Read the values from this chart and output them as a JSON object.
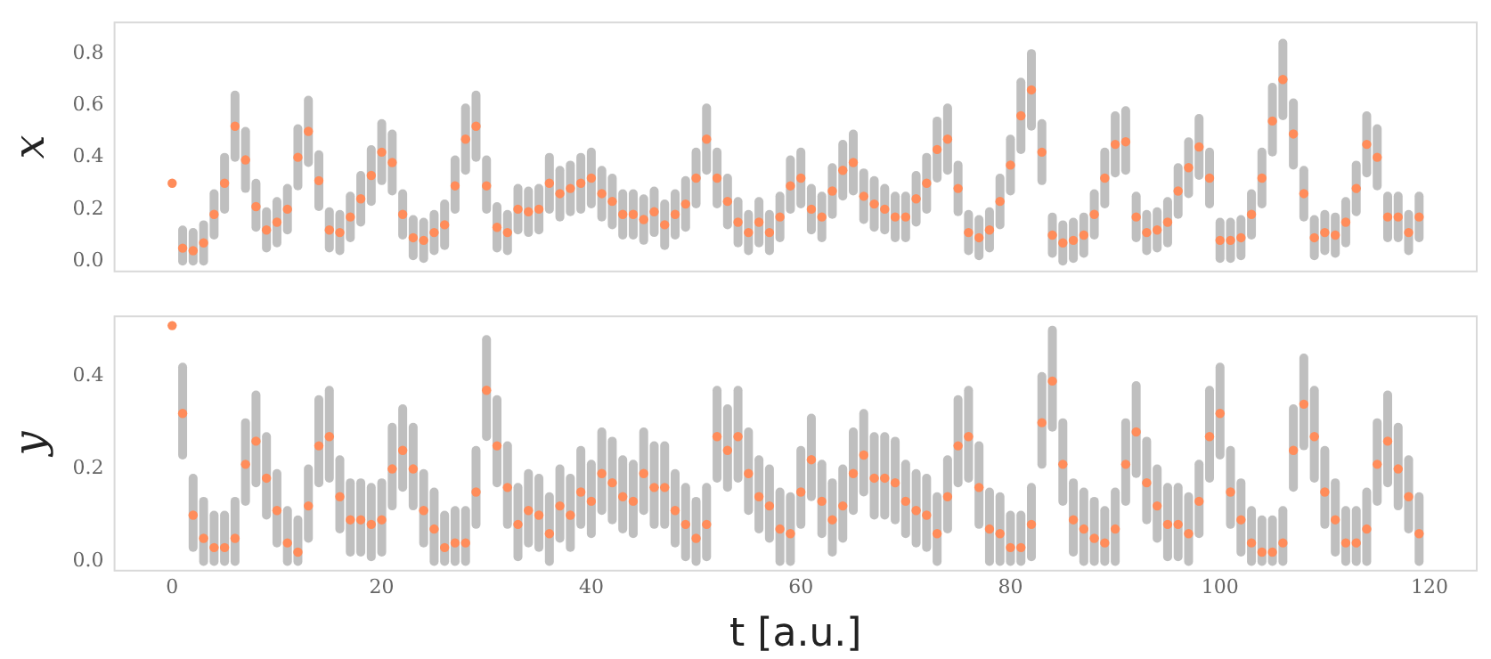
{
  "chart_data": [
    {
      "type": "scatter",
      "ylabel": "x",
      "marker": "circle",
      "grid": false,
      "legend": false,
      "tick_labels": "y",
      "color": "#ff8c5a",
      "x": [
        0,
        1,
        2,
        3,
        4,
        5,
        6,
        7,
        8,
        9,
        10,
        11,
        12,
        13,
        14,
        15,
        16,
        17,
        18,
        19,
        20,
        21,
        22,
        23,
        24,
        25,
        26,
        27,
        28,
        29,
        30,
        31,
        32,
        33,
        34,
        35,
        36,
        37,
        38,
        39,
        40,
        41,
        42,
        43,
        44,
        45,
        46,
        47,
        48,
        49,
        50,
        51,
        52,
        53,
        54,
        55,
        56,
        57,
        58,
        59,
        60,
        61,
        62,
        63,
        64,
        65,
        66,
        67,
        68,
        69,
        70,
        71,
        72,
        73,
        74,
        75,
        76,
        77,
        78,
        79,
        80,
        81,
        82,
        83,
        84,
        85,
        86,
        87,
        88,
        89,
        90,
        91,
        92,
        93,
        94,
        95,
        96,
        97,
        98,
        99,
        100,
        101,
        102,
        103,
        104,
        105,
        106,
        107,
        108,
        109,
        110,
        111,
        112,
        113,
        114,
        115,
        116,
        117,
        118,
        119
      ],
      "values": [
        0.3,
        0.05,
        0.04,
        0.07,
        0.18,
        0.3,
        0.52,
        0.39,
        0.21,
        0.12,
        0.15,
        0.2,
        0.4,
        0.5,
        0.31,
        0.12,
        0.11,
        0.17,
        0.24,
        0.33,
        0.42,
        0.38,
        0.18,
        0.09,
        0.08,
        0.11,
        0.14,
        0.29,
        0.47,
        0.52,
        0.29,
        0.13,
        0.11,
        0.2,
        0.19,
        0.2,
        0.3,
        0.26,
        0.28,
        0.3,
        0.32,
        0.26,
        0.23,
        0.18,
        0.18,
        0.16,
        0.19,
        0.14,
        0.18,
        0.22,
        0.32,
        0.47,
        0.32,
        0.23,
        0.15,
        0.11,
        0.15,
        0.11,
        0.17,
        0.29,
        0.32,
        0.2,
        0.17,
        0.27,
        0.35,
        0.38,
        0.25,
        0.22,
        0.2,
        0.17,
        0.17,
        0.24,
        0.3,
        0.43,
        0.47,
        0.28,
        0.11,
        0.09,
        0.12,
        0.23,
        0.37,
        0.56,
        0.66,
        0.42,
        0.1,
        0.07,
        0.08,
        0.1,
        0.18,
        0.32,
        0.45,
        0.46,
        0.17,
        0.11,
        0.12,
        0.15,
        0.27,
        0.36,
        0.44,
        0.32,
        0.08,
        0.08,
        0.09,
        0.18,
        0.32,
        0.54,
        0.7,
        0.49,
        0.26,
        0.09,
        0.11,
        0.1,
        0.15,
        0.28,
        0.45,
        0.4,
        0.17,
        0.17,
        0.11,
        0.17
      ],
      "errors": [
        null,
        [
          0.0,
          0.12
        ],
        [
          0.0,
          0.11
        ],
        [
          0.0,
          0.14
        ],
        [
          0.1,
          0.26
        ],
        [
          0.2,
          0.4
        ],
        [
          0.4,
          0.64
        ],
        [
          0.28,
          0.5
        ],
        [
          0.13,
          0.3
        ],
        [
          0.05,
          0.19
        ],
        [
          0.07,
          0.23
        ],
        [
          0.12,
          0.28
        ],
        [
          0.29,
          0.51
        ],
        [
          0.38,
          0.62
        ],
        [
          0.21,
          0.41
        ],
        [
          0.05,
          0.19
        ],
        [
          0.04,
          0.18
        ],
        [
          0.09,
          0.25
        ],
        [
          0.15,
          0.33
        ],
        [
          0.23,
          0.43
        ],
        [
          0.31,
          0.53
        ],
        [
          0.27,
          0.49
        ],
        [
          0.1,
          0.26
        ],
        [
          0.02,
          0.16
        ],
        [
          0.01,
          0.15
        ],
        [
          0.04,
          0.18
        ],
        [
          0.06,
          0.22
        ],
        [
          0.2,
          0.39
        ],
        [
          0.35,
          0.59
        ],
        [
          0.4,
          0.64
        ],
        [
          0.2,
          0.39
        ],
        [
          0.05,
          0.21
        ],
        [
          0.04,
          0.18
        ],
        [
          0.12,
          0.28
        ],
        [
          0.11,
          0.27
        ],
        [
          0.12,
          0.28
        ],
        [
          0.2,
          0.4
        ],
        [
          0.17,
          0.35
        ],
        [
          0.19,
          0.37
        ],
        [
          0.2,
          0.4
        ],
        [
          0.22,
          0.42
        ],
        [
          0.17,
          0.35
        ],
        [
          0.14,
          0.32
        ],
        [
          0.1,
          0.26
        ],
        [
          0.1,
          0.26
        ],
        [
          0.08,
          0.24
        ],
        [
          0.11,
          0.27
        ],
        [
          0.06,
          0.22
        ],
        [
          0.1,
          0.26
        ],
        [
          0.13,
          0.31
        ],
        [
          0.22,
          0.42
        ],
        [
          0.35,
          0.59
        ],
        [
          0.22,
          0.42
        ],
        [
          0.14,
          0.32
        ],
        [
          0.07,
          0.23
        ],
        [
          0.04,
          0.18
        ],
        [
          0.07,
          0.23
        ],
        [
          0.04,
          0.18
        ],
        [
          0.09,
          0.25
        ],
        [
          0.2,
          0.39
        ],
        [
          0.22,
          0.42
        ],
        [
          0.12,
          0.28
        ],
        [
          0.09,
          0.25
        ],
        [
          0.18,
          0.36
        ],
        [
          0.25,
          0.45
        ],
        [
          0.27,
          0.49
        ],
        [
          0.16,
          0.34
        ],
        [
          0.13,
          0.31
        ],
        [
          0.12,
          0.28
        ],
        [
          0.09,
          0.25
        ],
        [
          0.09,
          0.25
        ],
        [
          0.15,
          0.33
        ],
        [
          0.2,
          0.4
        ],
        [
          0.32,
          0.54
        ],
        [
          0.35,
          0.59
        ],
        [
          0.19,
          0.37
        ],
        [
          0.04,
          0.18
        ],
        [
          0.02,
          0.16
        ],
        [
          0.05,
          0.19
        ],
        [
          0.14,
          0.32
        ],
        [
          0.27,
          0.47
        ],
        [
          0.43,
          0.69
        ],
        [
          0.52,
          0.8
        ],
        [
          0.31,
          0.53
        ],
        [
          0.03,
          0.17
        ],
        [
          0.0,
          0.14
        ],
        [
          0.01,
          0.15
        ],
        [
          0.03,
          0.17
        ],
        [
          0.1,
          0.26
        ],
        [
          0.22,
          0.42
        ],
        [
          0.34,
          0.56
        ],
        [
          0.35,
          0.58
        ],
        [
          0.09,
          0.25
        ],
        [
          0.04,
          0.18
        ],
        [
          0.05,
          0.19
        ],
        [
          0.07,
          0.23
        ],
        [
          0.18,
          0.36
        ],
        [
          0.26,
          0.46
        ],
        [
          0.33,
          0.55
        ],
        [
          0.22,
          0.42
        ],
        [
          0.01,
          0.15
        ],
        [
          0.01,
          0.15
        ],
        [
          0.02,
          0.16
        ],
        [
          0.1,
          0.26
        ],
        [
          0.22,
          0.42
        ],
        [
          0.42,
          0.67
        ],
        [
          0.56,
          0.84
        ],
        [
          0.37,
          0.61
        ],
        [
          0.17,
          0.35
        ],
        [
          0.02,
          0.16
        ],
        [
          0.04,
          0.18
        ],
        [
          0.03,
          0.17
        ],
        [
          0.07,
          0.23
        ],
        [
          0.19,
          0.37
        ],
        [
          0.34,
          0.56
        ],
        [
          0.29,
          0.51
        ],
        [
          0.09,
          0.25
        ],
        [
          0.09,
          0.25
        ],
        [
          0.04,
          0.18
        ],
        [
          0.09,
          0.25
        ]
      ],
      "xlim": [
        -5.5,
        124.5
      ],
      "xticks": [
        0,
        20,
        40,
        60,
        80,
        100,
        120
      ],
      "ylim": [
        -0.04,
        0.92
      ],
      "yticks": [
        {
          "value": 0,
          "label": "0.0"
        },
        {
          "value": 0.2,
          "label": "0.2"
        },
        {
          "value": 0.4,
          "label": "0.4"
        },
        {
          "value": 0.6,
          "label": "0.6"
        },
        {
          "value": 0.8,
          "label": "0.8"
        }
      ]
    },
    {
      "type": "scatter",
      "ylabel": "y",
      "xlabel": "t [a.u.]",
      "marker": "circle",
      "grid": false,
      "legend": false,
      "color": "#ff8c5a",
      "x": [
        0,
        1,
        2,
        3,
        4,
        5,
        6,
        7,
        8,
        9,
        10,
        11,
        12,
        13,
        14,
        15,
        16,
        17,
        18,
        19,
        20,
        21,
        22,
        23,
        24,
        25,
        26,
        27,
        28,
        29,
        30,
        31,
        32,
        33,
        34,
        35,
        36,
        37,
        38,
        39,
        40,
        41,
        42,
        43,
        44,
        45,
        46,
        47,
        48,
        49,
        50,
        51,
        52,
        53,
        54,
        55,
        56,
        57,
        58,
        59,
        60,
        61,
        62,
        63,
        64,
        65,
        66,
        67,
        68,
        69,
        70,
        71,
        72,
        73,
        74,
        75,
        76,
        77,
        78,
        79,
        80,
        81,
        82,
        83,
        84,
        85,
        86,
        87,
        88,
        89,
        90,
        91,
        92,
        93,
        94,
        95,
        96,
        97,
        98,
        99,
        100,
        101,
        102,
        103,
        104,
        105,
        106,
        107,
        108,
        109,
        110,
        111,
        112,
        113,
        114,
        115,
        116,
        117,
        118,
        119
      ],
      "values": [
        0.51,
        0.32,
        0.1,
        0.05,
        0.03,
        0.03,
        0.05,
        0.21,
        0.26,
        0.18,
        0.11,
        0.04,
        0.02,
        0.12,
        0.25,
        0.27,
        0.14,
        0.09,
        0.09,
        0.08,
        0.09,
        0.2,
        0.24,
        0.2,
        0.11,
        0.07,
        0.03,
        0.04,
        0.04,
        0.15,
        0.37,
        0.25,
        0.16,
        0.08,
        0.11,
        0.1,
        0.06,
        0.12,
        0.1,
        0.15,
        0.13,
        0.19,
        0.17,
        0.14,
        0.13,
        0.19,
        0.16,
        0.16,
        0.11,
        0.08,
        0.05,
        0.08,
        0.27,
        0.24,
        0.27,
        0.19,
        0.14,
        0.12,
        0.07,
        0.06,
        0.15,
        0.22,
        0.13,
        0.09,
        0.12,
        0.19,
        0.23,
        0.18,
        0.18,
        0.17,
        0.13,
        0.11,
        0.1,
        0.06,
        0.14,
        0.25,
        0.27,
        0.16,
        0.07,
        0.06,
        0.03,
        0.03,
        0.08,
        0.3,
        0.39,
        0.21,
        0.09,
        0.07,
        0.05,
        0.04,
        0.07,
        0.21,
        0.28,
        0.17,
        0.12,
        0.08,
        0.08,
        0.06,
        0.13,
        0.27,
        0.32,
        0.15,
        0.09,
        0.04,
        0.02,
        0.02,
        0.04,
        0.24,
        0.34,
        0.27,
        0.15,
        0.09,
        0.04,
        0.04,
        0.07,
        0.21,
        0.26,
        0.2,
        0.14,
        0.06
      ],
      "errors": [
        null,
        [
          0.23,
          0.42
        ],
        [
          0.03,
          0.18
        ],
        [
          0.0,
          0.13
        ],
        [
          0.0,
          0.1
        ],
        [
          0.0,
          0.1
        ],
        [
          0.0,
          0.13
        ],
        [
          0.13,
          0.3
        ],
        [
          0.17,
          0.36
        ],
        [
          0.1,
          0.27
        ],
        [
          0.04,
          0.19
        ],
        [
          0.0,
          0.11
        ],
        [
          0.0,
          0.09
        ],
        [
          0.05,
          0.2
        ],
        [
          0.17,
          0.35
        ],
        [
          0.18,
          0.37
        ],
        [
          0.07,
          0.22
        ],
        [
          0.02,
          0.17
        ],
        [
          0.02,
          0.17
        ],
        [
          0.01,
          0.16
        ],
        [
          0.02,
          0.17
        ],
        [
          0.12,
          0.29
        ],
        [
          0.16,
          0.33
        ],
        [
          0.12,
          0.29
        ],
        [
          0.04,
          0.19
        ],
        [
          0.0,
          0.15
        ],
        [
          0.0,
          0.1
        ],
        [
          0.0,
          0.11
        ],
        [
          0.0,
          0.11
        ],
        [
          0.08,
          0.24
        ],
        [
          0.27,
          0.48
        ],
        [
          0.17,
          0.35
        ],
        [
          0.08,
          0.25
        ],
        [
          0.01,
          0.16
        ],
        [
          0.04,
          0.19
        ],
        [
          0.03,
          0.18
        ],
        [
          0.0,
          0.14
        ],
        [
          0.05,
          0.2
        ],
        [
          0.03,
          0.18
        ],
        [
          0.08,
          0.24
        ],
        [
          0.06,
          0.21
        ],
        [
          0.11,
          0.28
        ],
        [
          0.09,
          0.26
        ],
        [
          0.07,
          0.22
        ],
        [
          0.06,
          0.21
        ],
        [
          0.11,
          0.28
        ],
        [
          0.08,
          0.25
        ],
        [
          0.08,
          0.25
        ],
        [
          0.04,
          0.19
        ],
        [
          0.01,
          0.16
        ],
        [
          0.0,
          0.13
        ],
        [
          0.01,
          0.16
        ],
        [
          0.18,
          0.37
        ],
        [
          0.16,
          0.33
        ],
        [
          0.18,
          0.37
        ],
        [
          0.11,
          0.28
        ],
        [
          0.07,
          0.22
        ],
        [
          0.05,
          0.2
        ],
        [
          0.0,
          0.15
        ],
        [
          0.0,
          0.14
        ],
        [
          0.08,
          0.24
        ],
        [
          0.14,
          0.31
        ],
        [
          0.06,
          0.21
        ],
        [
          0.02,
          0.17
        ],
        [
          0.05,
          0.2
        ],
        [
          0.11,
          0.28
        ],
        [
          0.15,
          0.32
        ],
        [
          0.1,
          0.27
        ],
        [
          0.1,
          0.27
        ],
        [
          0.09,
          0.26
        ],
        [
          0.06,
          0.21
        ],
        [
          0.04,
          0.19
        ],
        [
          0.03,
          0.18
        ],
        [
          0.0,
          0.14
        ],
        [
          0.07,
          0.22
        ],
        [
          0.17,
          0.35
        ],
        [
          0.18,
          0.37
        ],
        [
          0.08,
          0.25
        ],
        [
          0.0,
          0.15
        ],
        [
          0.0,
          0.14
        ],
        [
          0.0,
          0.1
        ],
        [
          0.0,
          0.1
        ],
        [
          0.01,
          0.16
        ],
        [
          0.21,
          0.4
        ],
        [
          0.29,
          0.5
        ],
        [
          0.13,
          0.3
        ],
        [
          0.02,
          0.17
        ],
        [
          0.0,
          0.15
        ],
        [
          0.0,
          0.13
        ],
        [
          0.0,
          0.11
        ],
        [
          0.0,
          0.15
        ],
        [
          0.13,
          0.3
        ],
        [
          0.19,
          0.38
        ],
        [
          0.09,
          0.26
        ],
        [
          0.05,
          0.2
        ],
        [
          0.01,
          0.16
        ],
        [
          0.01,
          0.16
        ],
        [
          0.0,
          0.14
        ],
        [
          0.06,
          0.21
        ],
        [
          0.18,
          0.37
        ],
        [
          0.23,
          0.42
        ],
        [
          0.08,
          0.24
        ],
        [
          0.02,
          0.17
        ],
        [
          0.0,
          0.11
        ],
        [
          0.0,
          0.09
        ],
        [
          0.0,
          0.09
        ],
        [
          0.0,
          0.11
        ],
        [
          0.16,
          0.33
        ],
        [
          0.25,
          0.44
        ],
        [
          0.18,
          0.37
        ],
        [
          0.08,
          0.24
        ],
        [
          0.02,
          0.17
        ],
        [
          0.0,
          0.11
        ],
        [
          0.0,
          0.11
        ],
        [
          0.0,
          0.15
        ],
        [
          0.13,
          0.3
        ],
        [
          0.17,
          0.36
        ],
        [
          0.12,
          0.29
        ],
        [
          0.07,
          0.22
        ],
        [
          0.0,
          0.14
        ]
      ],
      "xlim": [
        -5.5,
        124.5
      ],
      "xticks": [
        0,
        20,
        40,
        60,
        80,
        100,
        120
      ],
      "ylim": [
        -0.02,
        0.53
      ],
      "yticks": [
        {
          "value": 0,
          "label": "0.0"
        },
        {
          "value": 0.2,
          "label": "0.2"
        },
        {
          "value": 0.4,
          "label": "0.4"
        }
      ]
    }
  ]
}
